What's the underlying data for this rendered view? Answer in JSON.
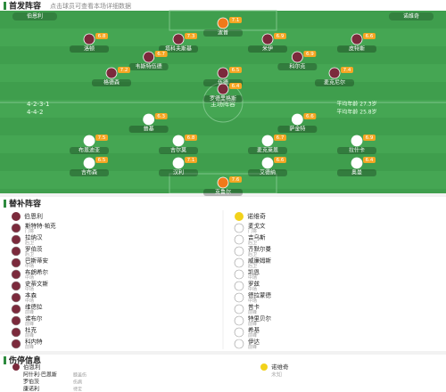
{
  "header": {
    "title": "首发阵容",
    "subtitle": "点击球员可查看本场详细数据"
  },
  "pitch": {
    "away": {
      "name": "伯恩利",
      "formation": "4-2-3-1",
      "rows": [
        [
          {
            "name": "波普",
            "rating": 7.1
          }
        ],
        [
          {
            "name": "洛顿",
            "rating": 6.8
          },
          {
            "name": "塔科夫斯基",
            "rating": 7.3
          },
          {
            "name": "米伊",
            "rating": 6.9
          },
          {
            "name": "皮特斯",
            "rating": 6.6
          }
        ],
        [
          {
            "name": "韦斯特伍德",
            "rating": 6.7
          },
          {
            "name": "科尔克",
            "rating": 6.9
          }
        ],
        [
          {
            "name": "格德森",
            "rating": 7.2
          },
          {
            "name": "伍德",
            "rating": 6.5
          },
          {
            "name": "麦克尼尔",
            "rating": 7.4
          }
        ],
        [
          {
            "name": "罗德里格斯",
            "rating": 6.4
          }
        ]
      ]
    },
    "home": {
      "name": "诺维奇",
      "formation": "4-4-2",
      "rows": [
        [
          {
            "name": "普基",
            "rating": 6.3
          },
          {
            "name": "萨金特",
            "rating": 6.6
          }
        ],
        [
          {
            "name": "布恩迪亚",
            "rating": 7.5
          },
          {
            "name": "吉尔莫",
            "rating": 6.8
          },
          {
            "name": "麦克莱恩",
            "rating": 6.7
          },
          {
            "name": "拉什卡",
            "rating": 6.9
          }
        ],
        [
          {
            "name": "吉布森",
            "rating": 6.5
          },
          {
            "name": "汉利",
            "rating": 7.1
          },
          {
            "name": "艾德纳",
            "rating": 6.6
          },
          {
            "name": "奥曼",
            "rating": 6.4
          }
        ],
        [
          {
            "name": "克鲁尔",
            "rating": 7.6
          }
        ]
      ]
    },
    "center_label": "主场阵容",
    "stats_left": "平均年龄 27.3岁",
    "stats_right": "平均年龄 25.8岁"
  },
  "subs": {
    "title": "替补阵容",
    "home": {
      "team": "伯恩利",
      "players": [
        {
          "name": "斯特特·帕克",
          "pos": "门将"
        },
        {
          "name": "拉纳汉",
          "pos": "后卫"
        },
        {
          "name": "罗伯茨",
          "pos": "后卫"
        },
        {
          "name": "巴斯蒂安",
          "pos": "中场"
        },
        {
          "name": "布朗希尔",
          "pos": "中场"
        },
        {
          "name": "史蒂文斯",
          "pos": "中场"
        },
        {
          "name": "本森",
          "pos": "中场"
        },
        {
          "name": "维德拉",
          "pos": "前锋"
        },
        {
          "name": "诺布尔",
          "pos": "前锋"
        },
        {
          "name": "杜克",
          "pos": "前锋"
        },
        {
          "name": "科内特",
          "pos": "前锋"
        }
      ]
    },
    "away": {
      "team": "诺维奇",
      "players": [
        {
          "name": "麦戈文",
          "pos": "门将"
        },
        {
          "name": "吉乌斯",
          "pos": "后卫"
        },
        {
          "name": "齐默尔曼",
          "pos": "后卫"
        },
        {
          "name": "威廉姆斯",
          "pos": "后卫"
        },
        {
          "name": "凯恩",
          "pos": "中场"
        },
        {
          "name": "罗兹",
          "pos": "中场"
        },
        {
          "name": "德拉蒙德",
          "pos": "中场"
        },
        {
          "name": "普卡",
          "pos": "前锋"
        },
        {
          "name": "特里贝尔",
          "pos": "前锋"
        },
        {
          "name": "希基",
          "pos": "前锋"
        },
        {
          "name": "伊达",
          "pos": "前锋"
        }
      ]
    }
  },
  "injuries": {
    "title": "伤停信息",
    "home": {
      "team": "伯恩利",
      "players": [
        {
          "name": "阿什利·巴恩斯",
          "status": "膝盖伤"
        },
        {
          "name": "罗伯茨",
          "status": "伤病"
        },
        {
          "name": "康诺利",
          "status": "待定"
        }
      ]
    },
    "away": {
      "team": "诺维奇",
      "players": [
        {
          "name": "未知",
          "status": ""
        }
      ]
    }
  }
}
